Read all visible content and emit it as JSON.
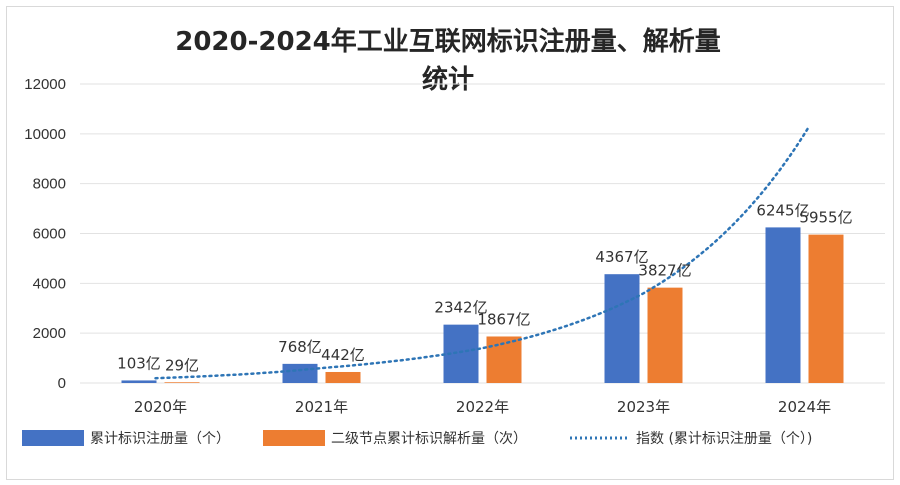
{
  "chart_data": {
    "type": "bar",
    "title_line1": "2020-2024年工业互联网标识注册量、解析量",
    "title_line2": "统计",
    "categories": [
      "2020年",
      "2021年",
      "2022年",
      "2023年",
      "2024年"
    ],
    "series": [
      {
        "name": "累计标识注册量（个）",
        "color": "#4472c4",
        "values": [
          103,
          768,
          2342,
          4367,
          6245
        ],
        "labels": [
          "103亿",
          "768亿",
          "2342亿",
          "4367亿",
          "6245亿"
        ]
      },
      {
        "name": "二级节点累计标识解析量（次）",
        "color": "#ed7d31",
        "values": [
          29,
          442,
          1867,
          3827,
          5955
        ],
        "labels": [
          "29亿",
          "442亿",
          "1867亿",
          "3827亿",
          "5955亿"
        ]
      }
    ],
    "trendline": {
      "name": "指数 (累计标识注册量（个）)",
      "type": "exponential",
      "color": "#2e75b6",
      "values": [
        200,
        600,
        1400,
        3600,
        10000
      ]
    },
    "ylim": [
      0,
      12000
    ],
    "yticks": [
      0,
      2000,
      4000,
      6000,
      8000,
      10000,
      12000
    ],
    "grid": true,
    "legend": "bottom"
  }
}
